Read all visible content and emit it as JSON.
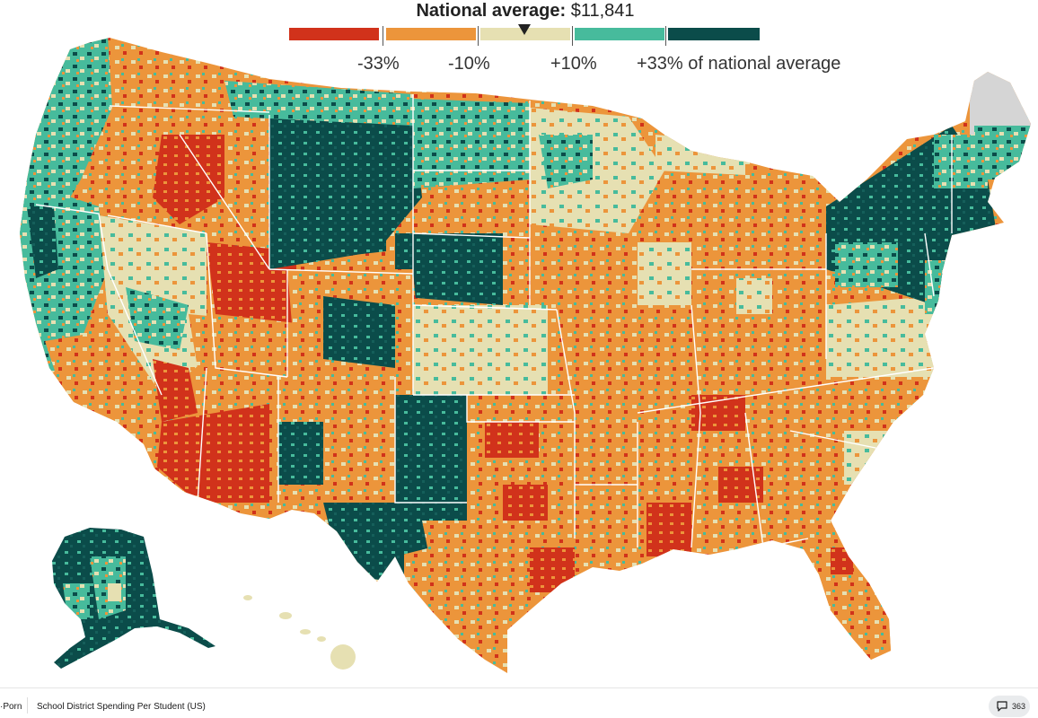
{
  "legend": {
    "title_bold": "National average:",
    "title_value": "$11,841",
    "labels": [
      "-33%",
      "-10%",
      "+10%",
      "+33% of national average"
    ],
    "bins": [
      {
        "color": "#d1321b"
      },
      {
        "color": "#ec953b"
      },
      {
        "color": "#e6e0b2"
      },
      {
        "color": "#47bb9c"
      },
      {
        "color": "#0b4c4a"
      }
    ],
    "no_data_color": "#d5d5d5",
    "border_color": "#ffffff"
  },
  "chart_data": {
    "type": "map",
    "region": "United States (contiguous US, Alaska, Hawaii)",
    "units": "school district spending per student relative to national average",
    "national_average": 11841,
    "breakpoints_pct": [
      -33,
      -10,
      10,
      33
    ]
  },
  "footer": {
    "subreddit_fragment": "·Porn",
    "post_title": "School District Spending Per Student (US)",
    "comment_count": "363"
  }
}
